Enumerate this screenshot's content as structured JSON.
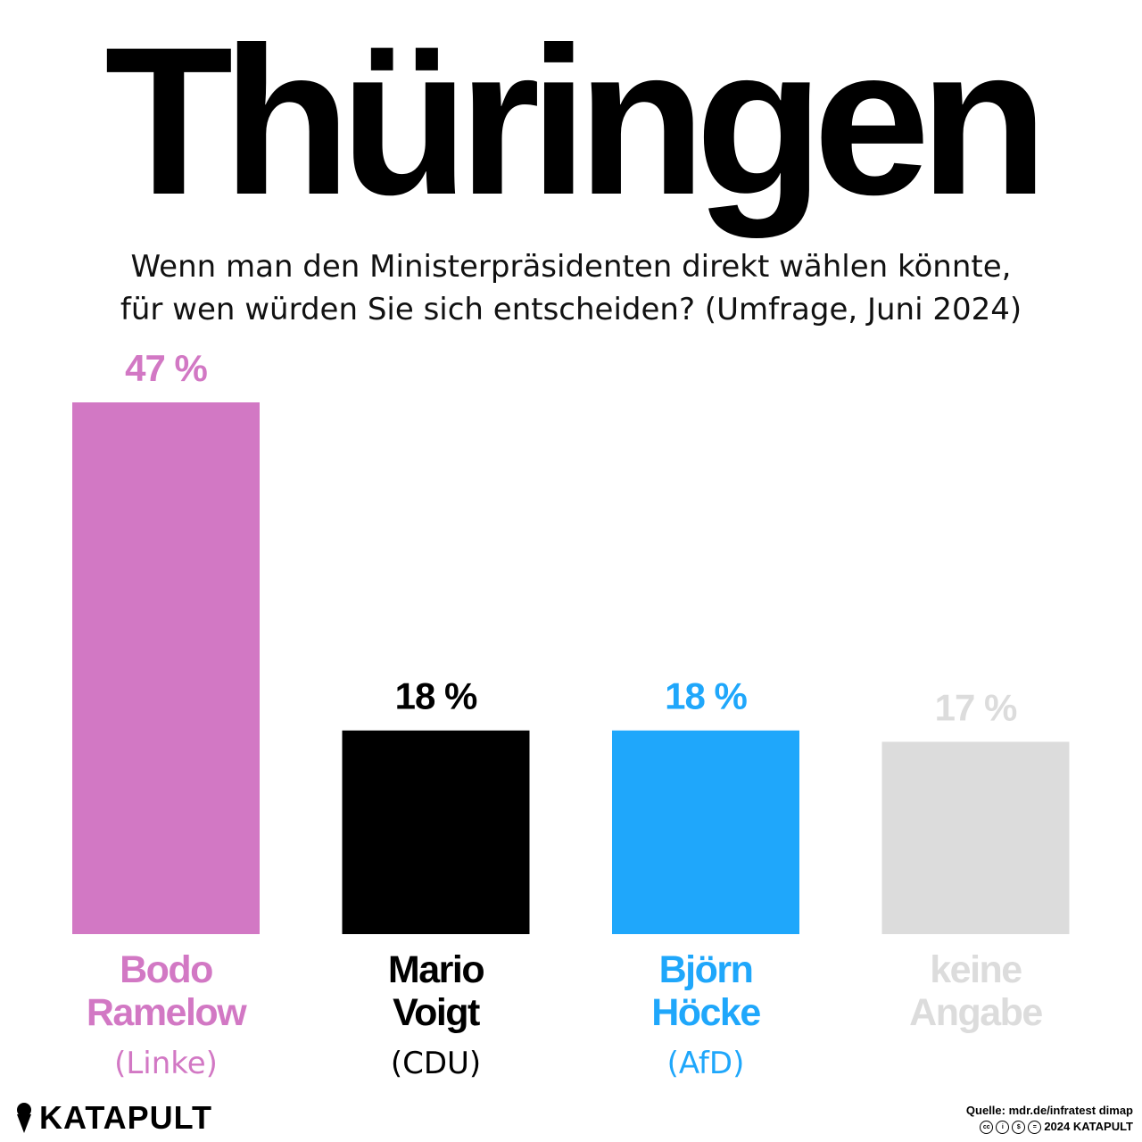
{
  "chart_data": {
    "type": "bar",
    "title": "Thüringen",
    "subtitle_lines": [
      "Wenn man den Ministerpräsidenten direkt wählen könnte,",
      "für wen würden Sie sich entscheiden? (Umfrage, Juni 2024)"
    ],
    "categories": [
      "Bodo Ramelow",
      "Mario Voigt",
      "Björn Höcke",
      "keine Angabe"
    ],
    "values": [
      47,
      18,
      18,
      17
    ],
    "value_labels": [
      "47 %",
      "18 %",
      "18 %",
      "17 %"
    ],
    "name_lines": [
      [
        "Bodo",
        "Ramelow"
      ],
      [
        "Mario",
        "Voigt"
      ],
      [
        "Björn",
        "Höcke"
      ],
      [
        "keine",
        "Angabe"
      ]
    ],
    "parties": [
      "(Linke)",
      "(CDU)",
      "(AfD)",
      ""
    ],
    "colors": [
      "#d278c4",
      "#000000",
      "#1fa7fb",
      "#dcdcdc"
    ],
    "label_colors": [
      "#d278c4",
      "#000000",
      "#1fa7fb",
      "#dcdcdc"
    ],
    "ylim": [
      0,
      47
    ],
    "grid": false,
    "legend": "none"
  },
  "footer": {
    "logo_icon": "ice-cream-icon",
    "logo_text": "KATAPULT",
    "source": "Quelle: mdr.de/infratest dimap",
    "license_icons": [
      "cc-icon",
      "by-icon",
      "nc-icon",
      "nd-icon"
    ],
    "license_text": "2024 KATAPULT"
  }
}
